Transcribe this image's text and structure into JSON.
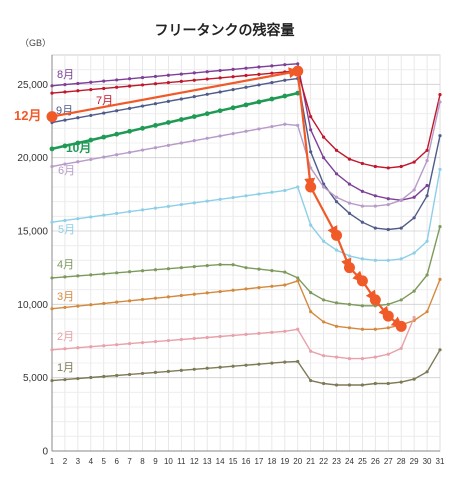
{
  "chart_data": {
    "type": "line",
    "title": "フリータンクの残容量",
    "unit_label": "（GB）",
    "x": [
      1,
      2,
      3,
      4,
      5,
      6,
      7,
      8,
      9,
      10,
      11,
      12,
      13,
      14,
      15,
      16,
      17,
      18,
      19,
      20,
      21,
      22,
      23,
      24,
      25,
      26,
      27,
      28,
      29,
      30,
      31
    ],
    "ylim": [
      0,
      27000
    ],
    "yticks": [
      0,
      5000,
      10000,
      15000,
      20000,
      25000
    ],
    "ytick_labels": [
      "0",
      "5,000",
      "10,000",
      "15,000",
      "20,000",
      "25,000"
    ],
    "xtick_labels": [
      "1",
      "2",
      "3",
      "4",
      "5",
      "6",
      "7",
      "8",
      "9",
      "10",
      "11",
      "12",
      "13",
      "14",
      "15",
      "16",
      "17",
      "18",
      "19",
      "20",
      "21",
      "22",
      "23",
      "24",
      "25",
      "26",
      "27",
      "28",
      "29",
      "30",
      "31"
    ],
    "grid": true,
    "series": [
      {
        "name": "8月",
        "color": "#7e3f98",
        "values": [
          24900,
          24980,
          25060,
          25140,
          25220,
          25300,
          25380,
          25460,
          25540,
          25620,
          25700,
          25780,
          25860,
          25940,
          26020,
          26100,
          26180,
          26260,
          26340,
          26400,
          21900,
          20000,
          18900,
          18200,
          17700,
          17400,
          17200,
          17100,
          17300,
          18100,
          null
        ]
      },
      {
        "name": "7月",
        "color": "#c0172c",
        "values": [
          24400,
          24480,
          24560,
          24640,
          24720,
          24800,
          24880,
          24960,
          25040,
          25120,
          25200,
          25280,
          25360,
          25440,
          25520,
          25600,
          25680,
          25760,
          25840,
          25900,
          22800,
          21400,
          20500,
          19900,
          19600,
          19400,
          19300,
          19400,
          19700,
          20500,
          24300
        ]
      },
      {
        "name": "9月",
        "color": "#4f5b8a",
        "values": [
          22400,
          22560,
          22720,
          22880,
          23040,
          23200,
          23360,
          23520,
          23680,
          23840,
          24000,
          24160,
          24320,
          24480,
          24640,
          24800,
          24960,
          25120,
          25280,
          25400,
          20400,
          18200,
          17000,
          16200,
          15600,
          15200,
          15100,
          15200,
          15900,
          17400,
          21500
        ]
      },
      {
        "name": "10月",
        "color": "#1e9a55",
        "values": [
          20600,
          20800,
          21000,
          21200,
          21400,
          21600,
          21800,
          22000,
          22200,
          22400,
          22600,
          22800,
          23000,
          23200,
          23400,
          23600,
          23800,
          24000,
          24200,
          24400,
          null,
          null,
          null,
          null,
          null,
          null,
          null,
          null,
          null,
          null,
          null
        ]
      },
      {
        "name": "6月",
        "color": "#b79bc8",
        "values": [
          19400,
          19560,
          19720,
          19880,
          20040,
          20200,
          20360,
          20520,
          20680,
          20840,
          21000,
          21160,
          21320,
          21480,
          21640,
          21800,
          21960,
          22120,
          22280,
          22200,
          19300,
          18000,
          17300,
          16900,
          16700,
          16700,
          16800,
          17100,
          17800,
          19800,
          23800
        ]
      },
      {
        "name": "5月",
        "color": "#8ecfe8",
        "values": [
          15600,
          15720,
          15840,
          15960,
          16080,
          16200,
          16320,
          16440,
          16560,
          16680,
          16800,
          16920,
          17040,
          17160,
          17280,
          17400,
          17520,
          17640,
          17760,
          18000,
          15400,
          14300,
          13700,
          13300,
          13100,
          13000,
          13000,
          13100,
          13500,
          14300,
          19200
        ]
      },
      {
        "name": "4月",
        "color": "#7d9a5c",
        "values": [
          11800,
          11870,
          11940,
          12010,
          12080,
          12150,
          12220,
          12290,
          12360,
          12430,
          12500,
          12570,
          12640,
          12710,
          12700,
          12500,
          12400,
          12300,
          12200,
          11800,
          10800,
          10300,
          10100,
          10000,
          9900,
          9900,
          10000,
          10300,
          10900,
          12000,
          15300
        ]
      },
      {
        "name": "3月",
        "color": "#d48a3e",
        "values": [
          9700,
          9790,
          9880,
          9970,
          10060,
          10150,
          10240,
          10330,
          10420,
          10510,
          10600,
          10690,
          10780,
          10870,
          10960,
          11050,
          11140,
          11230,
          11320,
          11600,
          9500,
          8800,
          8500,
          8400,
          8300,
          8300,
          8400,
          8600,
          8900,
          9500,
          11700
        ]
      },
      {
        "name": "2月",
        "color": "#e8a1a8",
        "values": [
          6900,
          6970,
          7040,
          7110,
          7180,
          7250,
          7320,
          7390,
          7460,
          7530,
          7600,
          7670,
          7740,
          7810,
          7880,
          7950,
          8020,
          8090,
          8160,
          8300,
          6800,
          6500,
          6400,
          6300,
          6300,
          6400,
          6600,
          7000,
          9100,
          null,
          null
        ]
      },
      {
        "name": "1月",
        "color": "#7e7a57",
        "values": [
          4800,
          4870,
          4940,
          5010,
          5080,
          5150,
          5220,
          5290,
          5360,
          5430,
          5500,
          5570,
          5640,
          5710,
          5780,
          5850,
          5920,
          5990,
          6060,
          6100,
          4800,
          4600,
          4500,
          4500,
          4500,
          4600,
          4600,
          4700,
          4900,
          5400,
          6900
        ]
      },
      {
        "name": "12月",
        "color": "#f05a28",
        "values": [
          22800,
          null,
          null,
          null,
          null,
          null,
          null,
          null,
          null,
          null,
          null,
          null,
          null,
          null,
          null,
          null,
          null,
          null,
          null,
          25900,
          18000,
          null,
          14700,
          12500,
          11600,
          10300,
          9200,
          8500,
          null,
          null,
          null
        ]
      }
    ]
  }
}
